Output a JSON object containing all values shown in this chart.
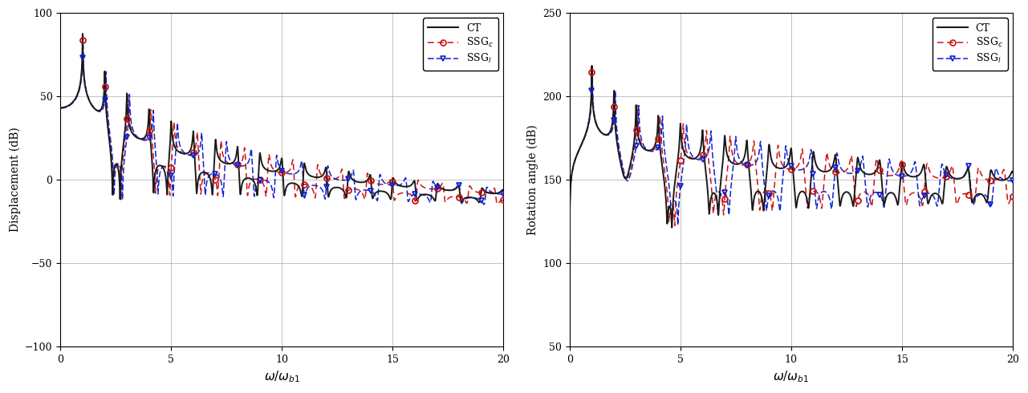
{
  "left_ylabel": "Displacement (dB)",
  "right_ylabel": "Rotation angle (dB)",
  "xlabel": "$\\omega/\\omega_{b1}$",
  "left_ylim": [
    -100,
    100
  ],
  "right_ylim": [
    50,
    250
  ],
  "xlim": [
    0,
    20
  ],
  "xticks": [
    0,
    5,
    10,
    15,
    20
  ],
  "left_yticks": [
    -100,
    -50,
    0,
    50,
    100
  ],
  "right_yticks": [
    50,
    100,
    150,
    200,
    250
  ],
  "ct_color": "#1a1a1a",
  "ssgc_color": "#cc1111",
  "ssgl_color": "#1122cc",
  "ct_lw": 1.4,
  "ssgc_lw": 1.1,
  "ssgl_lw": 1.1,
  "n_points": 5000,
  "num_modes": 20,
  "figsize": [
    12.81,
    4.9
  ],
  "dpi": 100
}
